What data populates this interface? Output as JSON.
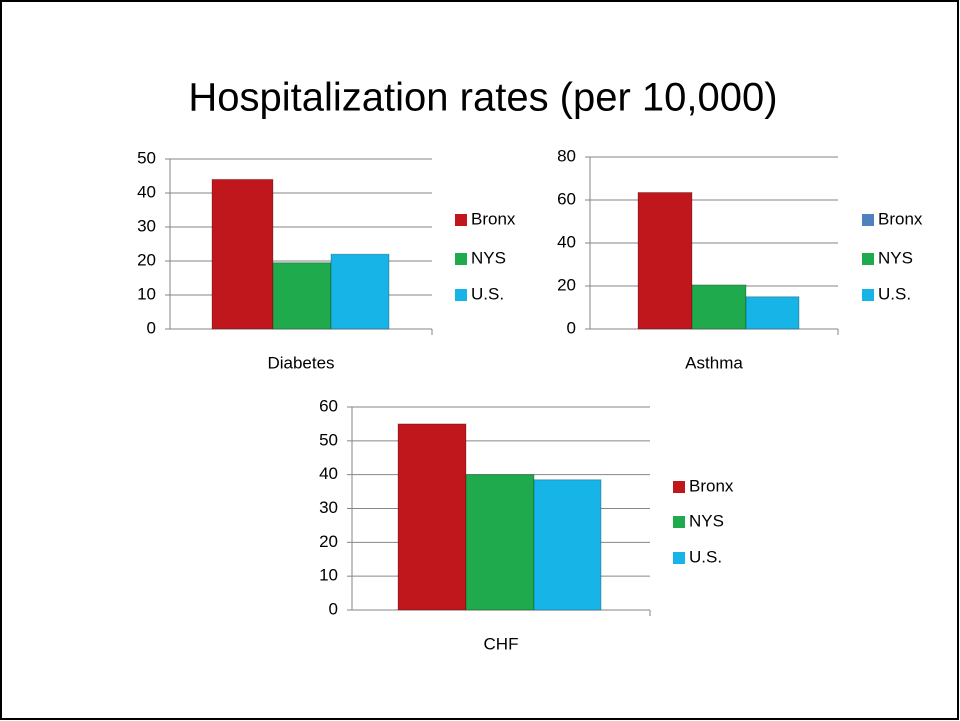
{
  "title": "Hospitalization rates (per 10,000)",
  "chart_data": [
    {
      "type": "bar",
      "categories": [
        "Diabetes"
      ],
      "ylim": [
        0,
        50
      ],
      "yticks": [
        0,
        10,
        20,
        30,
        40,
        50
      ],
      "grid": true,
      "series": [
        {
          "name": "Bronx",
          "color": "#c0171c",
          "values": [
            44
          ]
        },
        {
          "name": "NYS",
          "color": "#1faa4e",
          "values": [
            19.5
          ]
        },
        {
          "name": "U.S.",
          "color": "#17b4e8",
          "values": [
            22
          ]
        }
      ]
    },
    {
      "type": "bar",
      "categories": [
        "Asthma"
      ],
      "ylim": [
        0,
        80
      ],
      "yticks": [
        0,
        20,
        40,
        60,
        80
      ],
      "grid": true,
      "legend_colors": [
        "#4f81bd",
        "#1faa4e",
        "#17b4e8"
      ],
      "series": [
        {
          "name": "Bronx",
          "color": "#c0171c",
          "values": [
            63.5
          ]
        },
        {
          "name": "NYS",
          "color": "#1faa4e",
          "values": [
            20.5
          ]
        },
        {
          "name": "U.S.",
          "color": "#17b4e8",
          "values": [
            15
          ]
        }
      ]
    },
    {
      "type": "bar",
      "categories": [
        "CHF"
      ],
      "ylim": [
        0,
        60
      ],
      "yticks": [
        0,
        10,
        20,
        30,
        40,
        50,
        60
      ],
      "grid": true,
      "series": [
        {
          "name": "Bronx",
          "color": "#c0171c",
          "values": [
            55
          ]
        },
        {
          "name": "NYS",
          "color": "#1faa4e",
          "values": [
            40
          ]
        },
        {
          "name": "U.S.",
          "color": "#17b4e8",
          "values": [
            38.5
          ]
        }
      ]
    }
  ]
}
